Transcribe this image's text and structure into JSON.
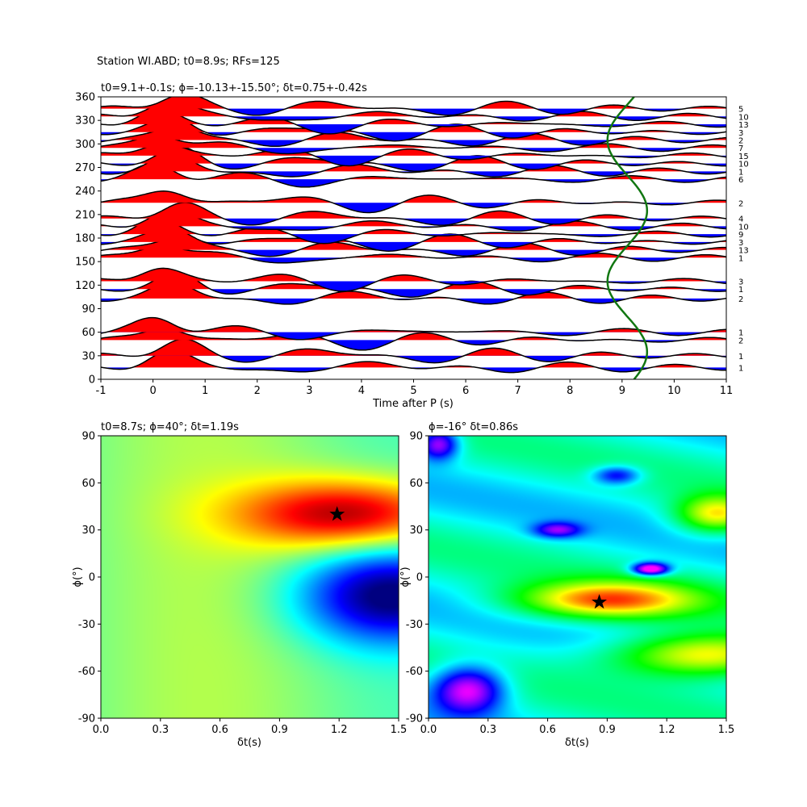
{
  "figure": {
    "suptitle": "Station WI.ABD; t0=8.9s; RFs=125"
  },
  "chart_data": [
    {
      "type": "line",
      "panel": "receiver-function-traces",
      "title": "t0=9.1+-0.1s; ϕ=-10.13+-15.50°; δt=0.75+-0.42s",
      "xlabel": "Time after P (s)",
      "ylabel": "",
      "xlim": [
        -1,
        11
      ],
      "ylim": [
        0,
        360
      ],
      "xticks": [
        "-1",
        "0",
        "1",
        "2",
        "3",
        "4",
        "5",
        "6",
        "7",
        "8",
        "9",
        "10",
        "11"
      ],
      "yticks": [
        "0",
        "30",
        "60",
        "90",
        "120",
        "150",
        "180",
        "210",
        "240",
        "270",
        "300",
        "330",
        "360"
      ],
      "fill_positive_color": "#ff0000",
      "fill_negative_color": "#0000ff",
      "trace_color": "#000000",
      "moveout_color": "#117711",
      "moveout_curve": {
        "center": 9.1,
        "amplitude": 0.38,
        "period_deg": 180,
        "phase_deg": -10
      },
      "traces": [
        {
          "baz": 15,
          "count": "1"
        },
        {
          "baz": 30,
          "count": "1"
        },
        {
          "baz": 50,
          "count": "2"
        },
        {
          "baz": 60,
          "count": "1"
        },
        {
          "baz": 103,
          "count": "2"
        },
        {
          "baz": 115,
          "count": "1"
        },
        {
          "baz": 125,
          "count": "3"
        },
        {
          "baz": 155,
          "count": "1"
        },
        {
          "baz": 165,
          "count": "13"
        },
        {
          "baz": 175,
          "count": "3"
        },
        {
          "baz": 185,
          "count": "9"
        },
        {
          "baz": 195,
          "count": "10"
        },
        {
          "baz": 205,
          "count": "4"
        },
        {
          "baz": 225,
          "count": "2"
        },
        {
          "baz": 255,
          "count": "6"
        },
        {
          "baz": 265,
          "count": "1"
        },
        {
          "baz": 275,
          "count": "10"
        },
        {
          "baz": 285,
          "count": "15"
        },
        {
          "baz": 295,
          "count": "7"
        },
        {
          "baz": 305,
          "count": "2"
        },
        {
          "baz": 315,
          "count": "3"
        },
        {
          "baz": 325,
          "count": "13"
        },
        {
          "baz": 335,
          "count": "10"
        },
        {
          "baz": 345,
          "count": "5"
        }
      ]
    },
    {
      "type": "heatmap",
      "panel": "grid-search-left",
      "title": "t0=8.7s; ϕ=40°; δt=1.19s",
      "xlabel": "δt(s)",
      "ylabel": "ϕ(°)",
      "xlim": [
        0,
        1.5
      ],
      "ylim": [
        -90,
        90
      ],
      "xticks": [
        "0.0",
        "0.3",
        "0.6",
        "0.9",
        "1.2",
        "1.5"
      ],
      "yticks": [
        "-90",
        "-60",
        "-30",
        "0",
        "30",
        "60",
        "90"
      ],
      "colormap": "jet",
      "best": {
        "dt": 1.19,
        "phi": 40
      }
    },
    {
      "type": "heatmap",
      "panel": "grid-search-right",
      "title": "ϕ=-16° δt=0.86s",
      "xlabel": "δt(s)",
      "ylabel": "ϕ(°)",
      "xlim": [
        0,
        1.5
      ],
      "ylim": [
        -90,
        90
      ],
      "xticks": [
        "0.0",
        "0.3",
        "0.6",
        "0.9",
        "1.2",
        "1.5"
      ],
      "yticks": [
        "-90",
        "-60",
        "-30",
        "0",
        "30",
        "60",
        "90"
      ],
      "colormap": "hsv",
      "best": {
        "dt": 0.86,
        "phi": -16
      }
    }
  ]
}
